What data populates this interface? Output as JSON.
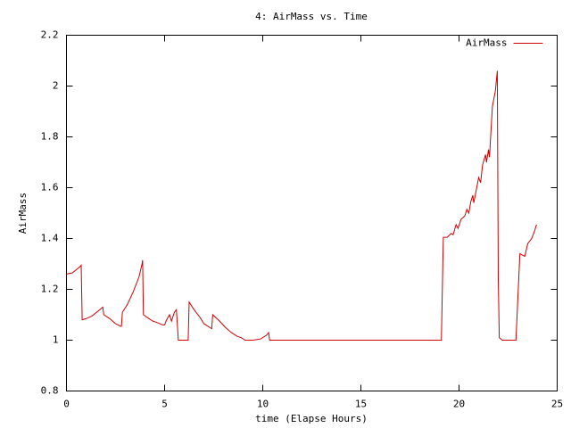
{
  "chart_data": {
    "type": "line",
    "title": "4: AirMass vs. Time",
    "xlabel": "time (Elapse Hours)",
    "ylabel": "AirMass",
    "xlim": [
      0,
      25
    ],
    "xticks": [
      0,
      5,
      10,
      15,
      20,
      25
    ],
    "ylim": [
      0.8,
      2.2
    ],
    "yticks": [
      0.8,
      1,
      1.2,
      1.4,
      1.6,
      1.8,
      2,
      2.2
    ],
    "grid": false,
    "legend": "upper right",
    "series": [
      {
        "name": "AirMass",
        "color": "#cc0000",
        "x": [
          0,
          0.3,
          0.7,
          0.75,
          0.8,
          1.0,
          1.3,
          1.7,
          1.85,
          1.9,
          2.2,
          2.5,
          2.75,
          2.8,
          2.85,
          3.1,
          3.4,
          3.7,
          3.85,
          3.88,
          3.92,
          4.2,
          4.4,
          4.6,
          4.9,
          5.0,
          5.1,
          5.25,
          5.35,
          5.5,
          5.6,
          5.7,
          6.2,
          6.25,
          6.5,
          6.8,
          7.0,
          7.3,
          7.4,
          7.45,
          7.8,
          8.1,
          8.4,
          8.7,
          8.9,
          9.1,
          9.5,
          9.9,
          10.2,
          10.3,
          10.35,
          19.0,
          19.1,
          19.2,
          19.4,
          19.6,
          19.7,
          19.85,
          19.95,
          20.1,
          20.3,
          20.4,
          20.5,
          20.6,
          20.7,
          20.75,
          20.9,
          21.0,
          21.1,
          21.2,
          21.35,
          21.4,
          21.5,
          21.55,
          21.7,
          21.85,
          21.95,
          22.0,
          22.05,
          22.2,
          22.9,
          23.1,
          23.35,
          23.5,
          23.7,
          23.85,
          23.95
        ],
        "values": [
          1.26,
          1.265,
          1.29,
          1.295,
          1.08,
          1.085,
          1.095,
          1.12,
          1.13,
          1.1,
          1.085,
          1.065,
          1.055,
          1.055,
          1.11,
          1.14,
          1.19,
          1.25,
          1.3,
          1.315,
          1.1,
          1.085,
          1.075,
          1.07,
          1.06,
          1.06,
          1.08,
          1.1,
          1.075,
          1.11,
          1.12,
          1.0,
          1.0,
          1.15,
          1.12,
          1.09,
          1.065,
          1.05,
          1.045,
          1.1,
          1.075,
          1.05,
          1.03,
          1.015,
          1.01,
          1.0,
          1.0,
          1.005,
          1.02,
          1.03,
          1.0,
          1.0,
          1.0,
          1.405,
          1.405,
          1.42,
          1.415,
          1.455,
          1.44,
          1.475,
          1.49,
          1.515,
          1.5,
          1.545,
          1.57,
          1.54,
          1.6,
          1.64,
          1.62,
          1.69,
          1.73,
          1.7,
          1.75,
          1.72,
          1.92,
          1.98,
          2.06,
          1.24,
          1.01,
          1.0,
          1.0,
          1.34,
          1.33,
          1.38,
          1.4,
          1.43,
          1.455
        ]
      }
    ]
  }
}
